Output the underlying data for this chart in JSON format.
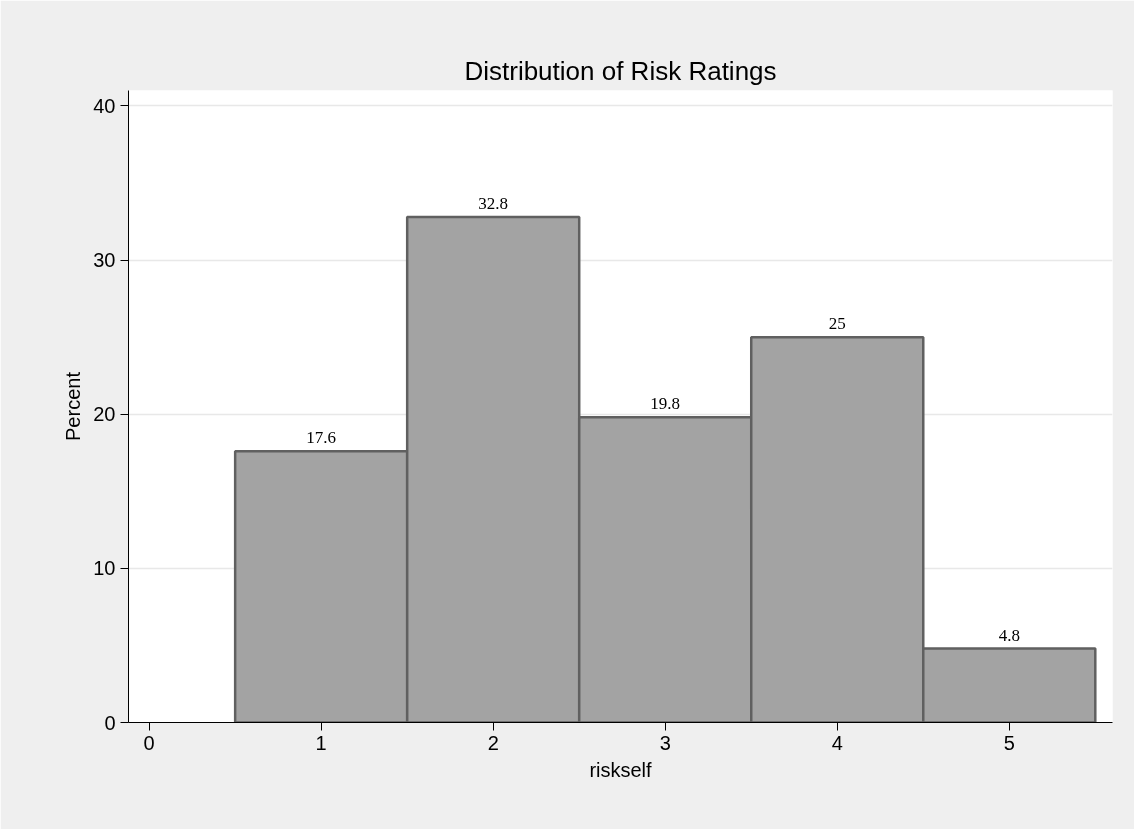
{
  "chart_data": {
    "type": "histogram",
    "title": "Distribution of Risk Ratings",
    "xlabel": "riskself",
    "ylabel": "Percent",
    "bins": [
      0.5,
      1.5,
      2.5,
      3.5,
      4.5,
      5.5
    ],
    "values": [
      17.6,
      32.8,
      19.8,
      25,
      4.8
    ],
    "color": "#a3a3a3",
    "xlim": [
      -0.12,
      5.6
    ],
    "xticks": [
      0,
      1,
      2,
      3,
      4,
      5
    ],
    "ylim": [
      0,
      41
    ],
    "yticks": [
      0,
      10,
      20,
      30,
      40
    ],
    "grid": "y",
    "data_labels": true
  }
}
